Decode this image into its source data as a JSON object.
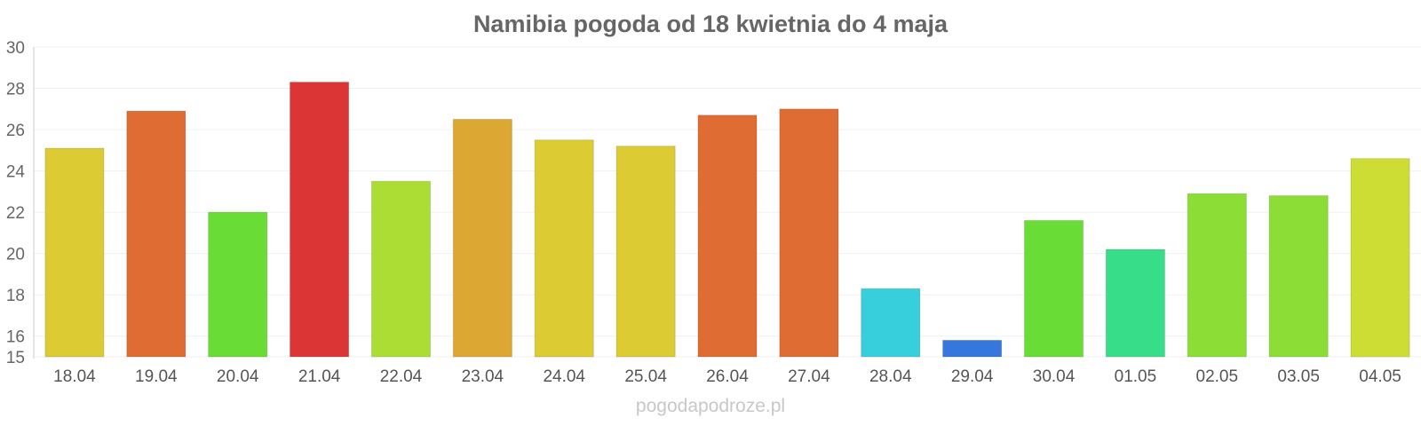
{
  "chart_data": {
    "type": "bar",
    "title": "Namibia pogoda od 18 kwietnia do 4 maja",
    "categories": [
      "18.04",
      "19.04",
      "20.04",
      "21.04",
      "22.04",
      "23.04",
      "24.04",
      "25.04",
      "26.04",
      "27.04",
      "28.04",
      "29.04",
      "30.04",
      "01.05",
      "02.05",
      "03.05",
      "04.05"
    ],
    "values": [
      25.1,
      26.9,
      22.0,
      28.3,
      23.5,
      26.5,
      25.5,
      25.2,
      26.7,
      27.0,
      18.3,
      15.8,
      21.6,
      20.2,
      22.9,
      22.8,
      24.6
    ],
    "colors": [
      "#dccb32",
      "#de6c33",
      "#69dc35",
      "#dc3535",
      "#acdd35",
      "#dca833",
      "#dccb32",
      "#dccb32",
      "#de6c33",
      "#de6c33",
      "#37cfdb",
      "#3677dd",
      "#69dc35",
      "#37dd88",
      "#8cdd35",
      "#8cdd35",
      "#cedd33"
    ],
    "yticks": [
      15,
      16,
      18,
      20,
      22,
      24,
      26,
      28,
      30
    ],
    "ylim": [
      15,
      30
    ],
    "grid": true,
    "xlabel": "",
    "ylabel": ""
  },
  "watermark": "pogodapodroze.pl"
}
